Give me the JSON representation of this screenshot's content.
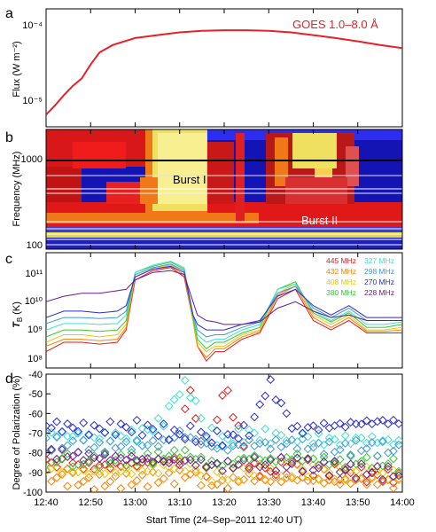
{
  "panel_letters": [
    "a",
    "b",
    "c",
    "d"
  ],
  "xlabel": "Start Time (24–Sep–2011 12:40 UT)",
  "x_ticks": [
    "12:40",
    "12:50",
    "13:00",
    "13:10",
    "13:20",
    "13:30",
    "13:40",
    "13:50",
    "14:00"
  ],
  "panel_a": {
    "ylabel": "Flux (W m⁻²)",
    "y_ticks": [
      "10⁻⁴",
      "10⁻⁵"
    ],
    "legend": "GOES 1.0–8.0 Å",
    "line_color": "#e8202a"
  },
  "panel_b": {
    "ylabel": "Frequency (MHz)",
    "y_ticks": [
      "1000",
      "100"
    ],
    "annotations": [
      "Burst I",
      "Burst II"
    ]
  },
  "panel_c": {
    "ylabel": "T",
    "ylabel_sub": "B",
    "ylabel_unit": " (K)",
    "y_ticks": [
      "10¹¹",
      "10¹⁰",
      "10⁹",
      "10⁸"
    ],
    "legend": [
      {
        "label": "445 MHz",
        "color": "#e41a1c"
      },
      {
        "label": "432 MHz",
        "color": "#ff7f00"
      },
      {
        "label": "408 MHz",
        "color": "#e6c619"
      },
      {
        "label": "380 MHz",
        "color": "#33c833"
      },
      {
        "label": "327 MHz",
        "color": "#40e0d0"
      },
      {
        "label": "298 MHz",
        "color": "#3b9bd6"
      },
      {
        "label": "270 MHz",
        "color": "#2b2bd0"
      },
      {
        "label": "228 MHz",
        "color": "#6a1b8a"
      }
    ]
  },
  "panel_d": {
    "ylabel": "Degree of Polarization (%)",
    "y_ticks": [
      "-40",
      "-50",
      "-60",
      "-70",
      "-80",
      "-90",
      "-100"
    ]
  },
  "chart_data": [
    {
      "type": "line",
      "x_unit": "minutes after 12:40 UT",
      "x": [
        0,
        2,
        4,
        6,
        8,
        10,
        12,
        15,
        20,
        25,
        30,
        35,
        40,
        45,
        50,
        55,
        60,
        65,
        70,
        75,
        80
      ],
      "series": [
        {
          "name": "GOES 1.0–8.0 Å",
          "values": [
            7e-06,
            9e-06,
            1.2e-05,
            1.55e-05,
            1.9e-05,
            2.8e-05,
            3.9e-05,
            4.8e-05,
            5.8e-05,
            6.3e-05,
            6.8e-05,
            7.1e-05,
            7.2e-05,
            7.2e-05,
            7.1e-05,
            6.8e-05,
            6.3e-05,
            5.8e-05,
            5.3e-05,
            4.8e-05,
            4.4e-05
          ]
        }
      ],
      "ylim": [
        5e-06,
        0.00013
      ],
      "yscale": "log"
    },
    {
      "type": "heatmap",
      "x_unit": "minutes after 12:40 UT",
      "xlim": [
        0,
        80
      ],
      "ylim": [
        90,
        2000
      ],
      "yscale": "log"
    },
    {
      "type": "line",
      "x_unit": "minutes after 12:40 UT",
      "x": [
        0,
        4,
        8,
        12,
        16,
        18,
        20,
        24,
        28,
        31,
        33,
        34,
        36,
        38,
        40,
        44,
        48,
        52,
        56,
        60,
        64,
        68,
        72,
        76,
        80
      ],
      "series": [
        {
          "name": "445 MHz",
          "values": [
            200000000.0,
            400000000.0,
            400000000.0,
            350000000.0,
            400000000.0,
            1000000000.0,
            40000000000.0,
            80000000000.0,
            100000000000.0,
            50000000000.0,
            2000000000.0,
            300000000.0,
            100000000.0,
            200000000.0,
            200000000.0,
            500000000.0,
            800000000.0,
            10000000000.0,
            20000000000.0,
            2000000000.0,
            1000000000.0,
            2000000000.0,
            800000000.0,
            800000000.0,
            800000000.0
          ]
        },
        {
          "name": "432 MHz",
          "values": [
            300000000.0,
            500000000.0,
            500000000.0,
            450000000.0,
            500000000.0,
            1200000000.0,
            50000000000.0,
            90000000000.0,
            105000000000.0,
            60000000000.0,
            2000000000.0,
            300000000.0,
            130000000.0,
            250000000.0,
            250000000.0,
            600000000.0,
            900000000.0,
            13000000000.0,
            25000000000.0,
            2500000000.0,
            1200000000.0,
            2500000000.0,
            900000000.0,
            900000000.0,
            1000000000.0
          ]
        },
        {
          "name": "408 MHz",
          "values": [
            400000000.0,
            700000000.0,
            700000000.0,
            600000000.0,
            700000000.0,
            1500000000.0,
            60000000000.0,
            100000000000.0,
            120000000000.0,
            80000000000.0,
            2000000000.0,
            400000000.0,
            200000000.0,
            300000000.0,
            300000000.0,
            700000000.0,
            1000000000.0,
            15000000000.0,
            30000000000.0,
            3000000000.0,
            1500000000.0,
            3000000000.0,
            1000000000.0,
            1000000000.0,
            1200000000.0
          ]
        },
        {
          "name": "380 MHz",
          "values": [
            600000000.0,
            1000000000.0,
            1000000000.0,
            900000000.0,
            1000000000.0,
            2000000000.0,
            70000000000.0,
            110000000000.0,
            150000000000.0,
            90000000000.0,
            2500000000.0,
            500000000.0,
            250000000.0,
            400000000.0,
            400000000.0,
            800000000.0,
            1200000000.0,
            20000000000.0,
            35000000000.0,
            3500000000.0,
            1800000000.0,
            3500000000.0,
            1200000000.0,
            1200000000.0,
            1500000000.0
          ]
        },
        {
          "name": "327 MHz",
          "values": [
            1000000000.0,
            1600000000.0,
            1600000000.0,
            1500000000.0,
            1600000000.0,
            3000000000.0,
            70000000000.0,
            120000000000.0,
            160000000000.0,
            100000000000.0,
            3000000000.0,
            700000000.0,
            400000000.0,
            500000000.0,
            500000000.0,
            1000000000.0,
            1500000000.0,
            20000000000.0,
            30000000000.0,
            4000000000.0,
            2000000000.0,
            4000000000.0,
            1500000000.0,
            1500000000.0,
            1800000000.0
          ]
        },
        {
          "name": "298 MHz",
          "values": [
            1600000000.0,
            2500000000.0,
            2500000000.0,
            2300000000.0,
            2500000000.0,
            4000000000.0,
            60000000000.0,
            100000000000.0,
            130000000000.0,
            80000000000.0,
            3000000000.0,
            1000000000.0,
            600000000.0,
            700000000.0,
            700000000.0,
            1200000000.0,
            1800000000.0,
            15000000000.0,
            25000000000.0,
            5000000000.0,
            2500000000.0,
            5000000000.0,
            2000000000.0,
            2000000000.0,
            2000000000.0
          ]
        },
        {
          "name": "270 MHz",
          "values": [
            2500000000.0,
            4000000000.0,
            4000000000.0,
            3500000000.0,
            4000000000.0,
            6000000000.0,
            50000000000.0,
            90000000000.0,
            110000000000.0,
            70000000000.0,
            3000000000.0,
            1500000000.0,
            1000000000.0,
            1000000000.0,
            1000000000.0,
            1500000000.0,
            2000000000.0,
            12000000000.0,
            20000000000.0,
            6000000000.0,
            3000000000.0,
            6000000000.0,
            2500000000.0,
            2500000000.0,
            2500000000.0
          ]
        },
        {
          "name": "228 MHz",
          "values": [
            8000000000.0,
            12000000000.0,
            15000000000.0,
            15000000000.0,
            18000000000.0,
            20000000000.0,
            40000000000.0,
            70000000000.0,
            80000000000.0,
            60000000000.0,
            8000000000.0,
            3000000000.0,
            2000000000.0,
            1800000000.0,
            1500000000.0,
            1500000000.0,
            1800000000.0,
            5000000000.0,
            8000000000.0,
            4000000000.0,
            2500000000.0,
            3000000000.0,
            2000000000.0,
            2000000000.0,
            2000000000.0
          ]
        }
      ],
      "ylim": [
        60000000.0,
        300000000000.0
      ],
      "yscale": "log"
    },
    {
      "type": "scatter",
      "x_unit": "minutes after 12:40 UT",
      "x": [
        0,
        10,
        20,
        26,
        30,
        32,
        36,
        40,
        46,
        50,
        56,
        60,
        66,
        70,
        76,
        80
      ],
      "series": [
        {
          "name": "445 MHz",
          "values": [
            -85,
            -87,
            -86,
            -84,
            -83,
            -43,
            -90,
            -45,
            -88,
            -90,
            -86,
            -88,
            -90,
            -91,
            -92,
            -92
          ]
        },
        {
          "name": "432 MHz",
          "values": [
            -92,
            -95,
            -94,
            -93,
            -92,
            -90,
            -95,
            -96,
            -92,
            -94,
            -93,
            -94,
            -95,
            -94,
            -95,
            -96
          ]
        },
        {
          "name": "408 MHz",
          "values": [
            -88,
            -90,
            -89,
            -88,
            -86,
            -87,
            -91,
            -92,
            -89,
            -90,
            -88,
            -90,
            -91,
            -90,
            -91,
            -92
          ]
        },
        {
          "name": "380 MHz",
          "values": [
            -82,
            -84,
            -83,
            -82,
            -80,
            -81,
            -85,
            -86,
            -82,
            -84,
            -82,
            -84,
            -85,
            -84,
            -85,
            -86
          ]
        },
        {
          "name": "327 MHz",
          "values": [
            -70,
            -72,
            -71,
            -65,
            -48,
            -46,
            -70,
            -74,
            -70,
            -72,
            -71,
            -73,
            -74,
            -73,
            -74,
            -75
          ]
        },
        {
          "name": "298 MHz",
          "values": [
            -75,
            -77,
            -76,
            -75,
            -70,
            -72,
            -76,
            -78,
            -75,
            -76,
            -75,
            -77,
            -78,
            -77,
            -78,
            -79
          ]
        },
        {
          "name": "270 MHz",
          "values": [
            -66,
            -68,
            -67,
            -69,
            -71,
            -70,
            -72,
            -73,
            -68,
            -44,
            -69,
            -67,
            -66,
            -65,
            -64,
            -65
          ]
        },
        {
          "name": "228 MHz",
          "values": [
            -80,
            -82,
            -83,
            -84,
            -85,
            -84,
            -86,
            -87,
            -85,
            -86,
            -85,
            -87,
            -88,
            -89,
            -90,
            -91
          ]
        }
      ],
      "ylim": [
        -100,
        -40
      ]
    }
  ]
}
